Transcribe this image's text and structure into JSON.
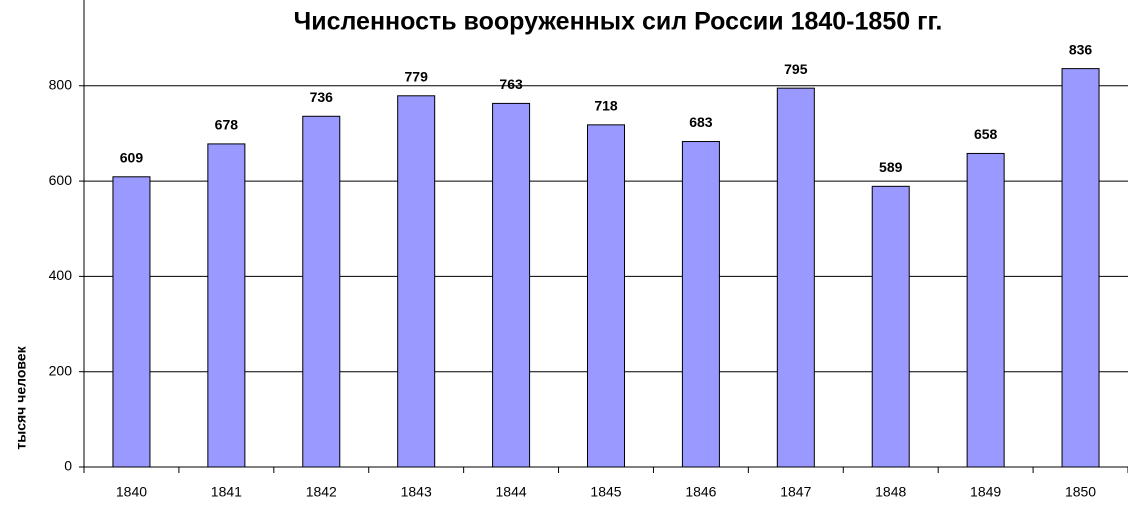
{
  "chart_data": {
    "type": "bar",
    "title": "Численность вооруженных сил России 1840-1850 гг.",
    "y_label": "тысяч человек",
    "categories": [
      "1840",
      "1841",
      "1842",
      "1843",
      "1844",
      "1845",
      "1846",
      "1847",
      "1848",
      "1849",
      "1850"
    ],
    "values": [
      609,
      678,
      736,
      779,
      763,
      718,
      683,
      795,
      589,
      658,
      836
    ],
    "color": "#9999ff",
    "ylim": [
      0,
      980
    ],
    "yticks": [
      0,
      200,
      400,
      600,
      800
    ],
    "grid": true
  }
}
